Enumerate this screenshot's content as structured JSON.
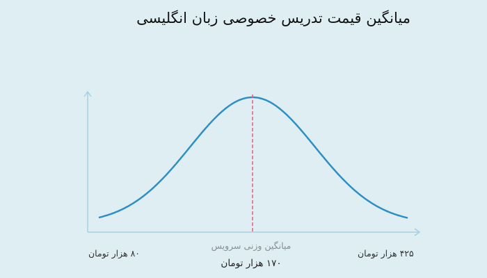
{
  "title": "میانگین قیمت تدریس خصوصی زبان انگلیسی",
  "chart_data": {
    "type": "line",
    "title": "میانگین قیمت تدریس خصوصی زبان انگلیسی",
    "distribution": "normal",
    "x_min": 80,
    "x_max": 425,
    "mean": 170,
    "labels": {
      "min": "۸۰ هزار تومان",
      "max": "۴۲۵ هزار تومان",
      "mean_caption": "میانگین وزنی سرویس",
      "mean_value": "۱۷۰ هزار تومان"
    },
    "grid": false,
    "colors": {
      "curve": "#2f8fc4",
      "mean_line": "#e0607a",
      "axis": "#a8cfe0",
      "background": "#deeef3"
    }
  }
}
